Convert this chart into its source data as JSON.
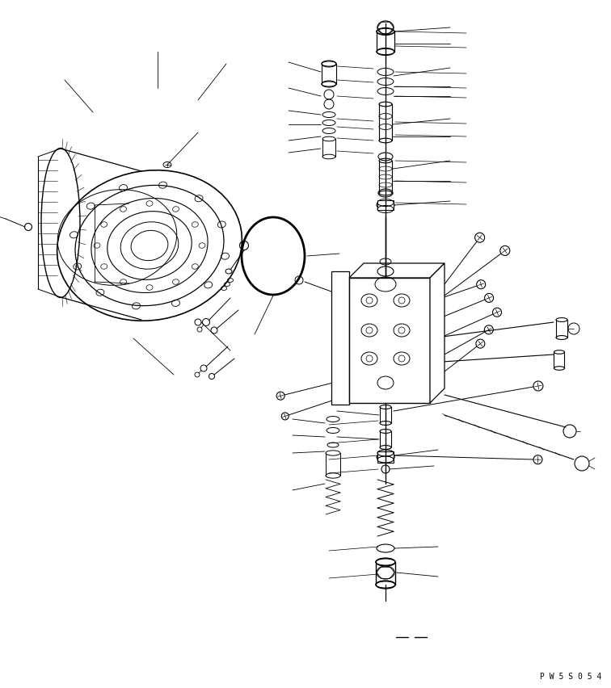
{
  "bg_color": "#ffffff",
  "lc": "#000000",
  "lw": 0.7,
  "watermark": "P W 5 S 0 5 4",
  "fig_width": 7.56,
  "fig_height": 8.53,
  "dpi": 100
}
